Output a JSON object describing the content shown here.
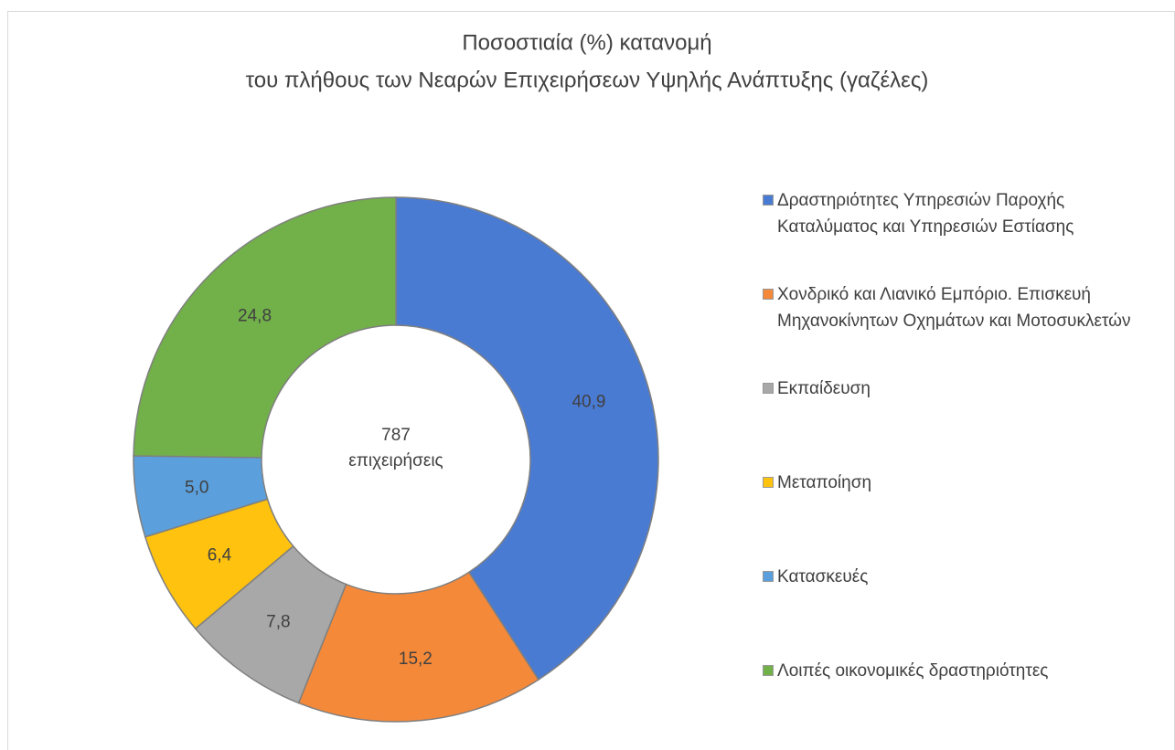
{
  "chart_data": {
    "type": "donut",
    "title": [
      "Ποσοστιαία (%) κατανομή",
      "του πλήθους των Νεαρών Επιχειρήσεων Υψηλής Ανάπτυξης (γαζέλες)"
    ],
    "center_text": [
      "787",
      "επιχειρήσεις"
    ],
    "categories": [
      "Δραστηριότητες Υπηρεσιών Παροχής Καταλύματος και Υπηρεσιών Εστίασης",
      "Χονδρικό και Λιανικό Εμπόριο. Επισκευή Μηχανοκίνητων Οχημάτων και Μοτοσυκλετών",
      "Εκπαίδευση",
      "Μεταποίηση",
      "Κατασκευές",
      "Λοιπές οικονομικές δραστηριότητες"
    ],
    "values": [
      40.9,
      15.2,
      7.8,
      6.4,
      5.0,
      24.8
    ],
    "value_labels": [
      "40,9",
      "15,2",
      "7,8",
      "6,4",
      "5,0",
      "24,8"
    ],
    "colors": [
      "#4a7bd3",
      "#f5893a",
      "#a8a8a8",
      "#ffc20e",
      "#5ba0dc",
      "#72b04a"
    ],
    "legend": "right"
  }
}
